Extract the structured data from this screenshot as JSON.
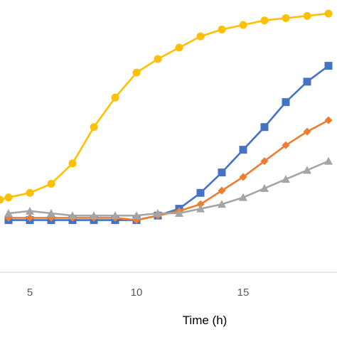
{
  "chart_data": {
    "type": "line",
    "xlabel": "Time (h)",
    "ylabel": "",
    "title": "",
    "xlim": [
      3.6,
      19.4
    ],
    "ylim": [
      0,
      12
    ],
    "x_ticks": [
      5,
      10,
      15
    ],
    "x_tick_labels": [
      "5",
      "10",
      "15"
    ],
    "grid": false,
    "legend": "none",
    "x": [
      4,
      5,
      6,
      7,
      8,
      9,
      10,
      11,
      12,
      13,
      14,
      15,
      16,
      17,
      18,
      19
    ],
    "series": [
      {
        "color": "#FFC000",
        "marker": "circle",
        "x": [
          3.6,
          4,
          5,
          6,
          7,
          8,
          9,
          10,
          11,
          12,
          13,
          14,
          15,
          16,
          17,
          18,
          19
        ],
        "values": [
          3.2,
          3.3,
          3.5,
          3.9,
          4.8,
          6.4,
          7.7,
          8.8,
          9.4,
          9.9,
          10.4,
          10.7,
          10.9,
          11.1,
          11.2,
          11.3,
          11.4
        ]
      },
      {
        "color": "#4472C4",
        "marker": "square",
        "x": [
          4,
          5,
          6,
          7,
          8,
          9,
          10,
          11,
          12,
          13,
          14,
          15,
          16,
          17,
          18,
          19
        ],
        "values": [
          2.3,
          2.3,
          2.3,
          2.3,
          2.3,
          2.3,
          2.3,
          2.5,
          2.8,
          3.5,
          4.4,
          5.4,
          6.4,
          7.5,
          8.4,
          9.1
        ]
      },
      {
        "color": "#ED7D31",
        "marker": "diamond",
        "x": [
          4,
          5,
          6,
          7,
          8,
          9,
          10,
          11,
          12,
          13,
          14,
          15,
          16,
          17,
          18,
          19
        ],
        "values": [
          2.4,
          2.4,
          2.4,
          2.4,
          2.4,
          2.4,
          2.3,
          2.5,
          2.7,
          3.0,
          3.6,
          4.2,
          4.9,
          5.6,
          6.2,
          6.7
        ]
      },
      {
        "color": "#A5A5A5",
        "marker": "triangle",
        "x": [
          4,
          5,
          6,
          7,
          8,
          9,
          10,
          11,
          12,
          13,
          14,
          15,
          16,
          17,
          18,
          19
        ],
        "values": [
          2.6,
          2.7,
          2.6,
          2.5,
          2.5,
          2.5,
          2.5,
          2.6,
          2.6,
          2.8,
          3.0,
          3.3,
          3.7,
          4.1,
          4.5,
          4.9
        ]
      }
    ]
  }
}
